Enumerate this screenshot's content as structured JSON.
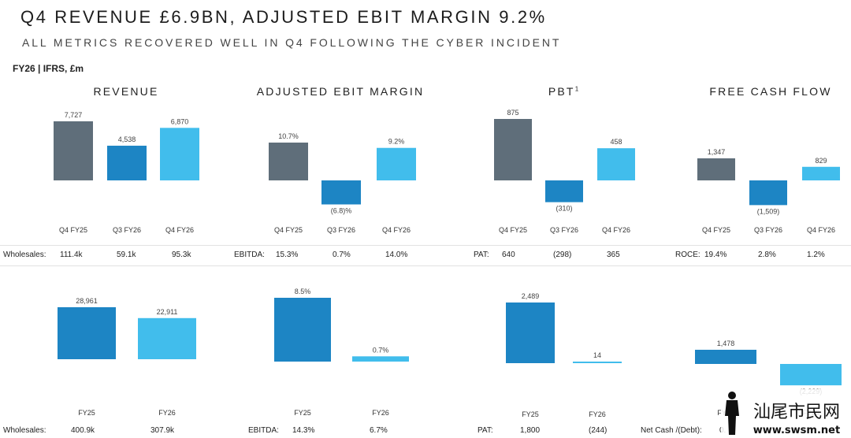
{
  "header": {
    "title": "Q4 REVENUE £6.9BN, ADJUSTED EBIT MARGIN 9.2%",
    "subtitle": "ALL METRICS RECOVERED WELL IN Q4 FOLLOWING THE CYBER INCIDENT",
    "basis": "FY26 | IFRS, £m"
  },
  "panels": [
    {
      "title": "REVENUE",
      "sup": ""
    },
    {
      "title": "ADJUSTED EBIT MARGIN",
      "sup": ""
    },
    {
      "title": "PBT",
      "sup": "1"
    },
    {
      "title": "FREE CASH FLOW",
      "sup": ""
    }
  ],
  "colors": {
    "dark_grey": "#5f6e7a",
    "mid_blue": "#1d85c4",
    "light_blue": "#41bdec"
  },
  "chart_data": [
    {
      "type": "bar",
      "group": "quarterly",
      "title": "REVENUE",
      "categories": [
        "Q4 FY25",
        "Q3 FY26",
        "Q4 FY26"
      ],
      "values": [
        7727,
        4538,
        6870
      ],
      "labels": [
        "7,727",
        "4,538",
        "6,870"
      ],
      "colors": [
        "dark_grey",
        "mid_blue",
        "light_blue"
      ]
    },
    {
      "type": "bar",
      "group": "quarterly",
      "title": "ADJUSTED EBIT MARGIN",
      "categories": [
        "Q4 FY25",
        "Q3 FY26",
        "Q4 FY26"
      ],
      "values": [
        10.7,
        -6.8,
        9.2
      ],
      "labels": [
        "10.7%",
        "(6.8)%",
        "9.2%"
      ],
      "colors": [
        "dark_grey",
        "mid_blue",
        "light_blue"
      ]
    },
    {
      "type": "bar",
      "group": "quarterly",
      "title": "PBT",
      "categories": [
        "Q4 FY25",
        "Q3 FY26",
        "Q4 FY26"
      ],
      "values": [
        875,
        -310,
        458
      ],
      "labels": [
        "875",
        "(310)",
        "458"
      ],
      "colors": [
        "dark_grey",
        "mid_blue",
        "light_blue"
      ]
    },
    {
      "type": "bar",
      "group": "quarterly",
      "title": "FREE CASH FLOW",
      "categories": [
        "Q4 FY25",
        "Q3 FY26",
        "Q4 FY26"
      ],
      "values": [
        1347,
        -1509,
        829
      ],
      "labels": [
        "1,347",
        "(1,509)",
        "829"
      ],
      "colors": [
        "dark_grey",
        "mid_blue",
        "light_blue"
      ]
    },
    {
      "type": "bar",
      "group": "full_year",
      "title": "REVENUE",
      "categories": [
        "FY25",
        "FY26"
      ],
      "values": [
        28961,
        22911
      ],
      "labels": [
        "28,961",
        "22,911"
      ],
      "colors": [
        "mid_blue",
        "light_blue"
      ]
    },
    {
      "type": "bar",
      "group": "full_year",
      "title": "ADJUSTED EBIT MARGIN",
      "categories": [
        "FY25",
        "FY26"
      ],
      "values": [
        8.5,
        0.7
      ],
      "labels": [
        "8.5%",
        "0.7%"
      ],
      "colors": [
        "mid_blue",
        "light_blue"
      ]
    },
    {
      "type": "bar",
      "group": "full_year",
      "title": "PBT",
      "categories": [
        "FY25",
        "FY26"
      ],
      "values": [
        2489,
        14
      ],
      "labels": [
        "2,489",
        "14"
      ],
      "colors": [
        "mid_blue",
        "light_blue"
      ]
    },
    {
      "type": "bar",
      "group": "full_year",
      "title": "FREE CASH FLOW",
      "categories": [
        "FY25",
        "FY26"
      ],
      "values": [
        1478,
        -2229
      ],
      "labels": [
        "1,478",
        "(2,229)"
      ],
      "colors": [
        "mid_blue",
        "light_blue"
      ]
    }
  ],
  "metrics_quarterly": [
    {
      "label": "Wholesales:",
      "values": [
        "111.4k",
        "59.1k",
        "95.3k"
      ]
    },
    {
      "label": "EBITDA:",
      "values": [
        "15.3%",
        "0.7%",
        "14.0%"
      ]
    },
    {
      "label": "PAT:",
      "values": [
        "640",
        "(298)",
        "365"
      ]
    },
    {
      "label": "ROCE:",
      "values": [
        "19.4%",
        "2.8%",
        "1.2%"
      ]
    }
  ],
  "metrics_full_year": [
    {
      "label": "Wholesales:",
      "values": [
        "400.9k",
        "307.9k"
      ]
    },
    {
      "label": "EBITDA:",
      "values": [
        "14.3%",
        "6.7%"
      ]
    },
    {
      "label": "PAT:",
      "values": [
        "1,800",
        "(244)"
      ]
    },
    {
      "label": "Net Cash /(Debt):",
      "values": [
        "0."
      ]
    }
  ],
  "watermark": {
    "text": "汕尾市民网",
    "url_text": "www.swsm.net"
  }
}
